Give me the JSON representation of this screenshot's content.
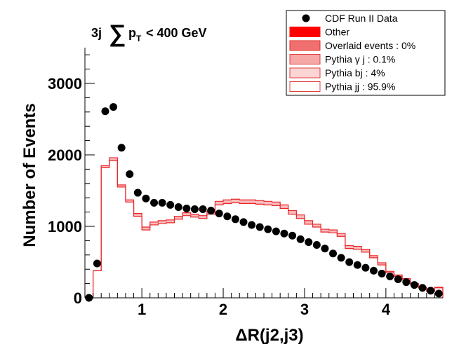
{
  "chart_data": {
    "type": "line",
    "xlabel": "ΔR(j2,j3)",
    "ylabel": "Number of Events",
    "xlim": [
      0.3,
      4.7
    ],
    "ylim": [
      0,
      3500
    ],
    "x_ticks": [
      1,
      2,
      3,
      4
    ],
    "y_ticks": [
      0,
      1000,
      2000,
      3000
    ],
    "header": {
      "prefix": "3j",
      "sum_symbol": "∑",
      "var": "p",
      "sub": "T",
      "cut": "< 400 GeV"
    },
    "bin_edges": [
      0.3,
      0.4,
      0.5,
      0.6,
      0.7,
      0.8,
      0.9,
      1.0,
      1.1,
      1.2,
      1.3,
      1.4,
      1.5,
      1.6,
      1.7,
      1.8,
      1.9,
      2.0,
      2.1,
      2.2,
      2.3,
      2.4,
      2.5,
      2.6,
      2.7,
      2.8,
      2.9,
      3.0,
      3.1,
      3.2,
      3.3,
      3.4,
      3.5,
      3.6,
      3.7,
      3.8,
      3.9,
      4.0,
      4.1,
      4.2,
      4.3,
      4.4,
      4.5,
      4.6,
      4.7
    ],
    "series": [
      {
        "name": "CDF Run II Data",
        "style": "markers",
        "x": [
          0.35,
          0.45,
          0.55,
          0.65,
          0.75,
          0.85,
          0.95,
          1.05,
          1.15,
          1.25,
          1.35,
          1.45,
          1.55,
          1.65,
          1.75,
          1.85,
          1.95,
          2.05,
          2.15,
          2.25,
          2.35,
          2.45,
          2.55,
          2.65,
          2.75,
          2.85,
          2.95,
          3.05,
          3.15,
          3.25,
          3.35,
          3.45,
          3.55,
          3.65,
          3.75,
          3.85,
          3.95,
          4.05,
          4.15,
          4.25,
          4.35,
          4.45,
          4.55,
          4.65
        ],
        "values": [
          0,
          480,
          2610,
          2670,
          2100,
          1730,
          1470,
          1390,
          1330,
          1330,
          1300,
          1270,
          1250,
          1240,
          1240,
          1220,
          1180,
          1140,
          1100,
          1060,
          1020,
          990,
          960,
          930,
          900,
          870,
          820,
          780,
          740,
          690,
          620,
          560,
          500,
          460,
          420,
          380,
          340,
          300,
          260,
          220,
          180,
          140,
          100,
          60
        ]
      },
      {
        "name": "Pythia jj : 95.9%",
        "style": "hist",
        "values": [
          0,
          380,
          1820,
          1920,
          1550,
          1340,
          1140,
          950,
          1020,
          1040,
          1050,
          1100,
          1150,
          1130,
          1110,
          1170,
          1300,
          1320,
          1330,
          1320,
          1320,
          1310,
          1300,
          1290,
          1250,
          1170,
          1110,
          1030,
          990,
          920,
          910,
          860,
          690,
          680,
          640,
          560,
          460,
          350,
          300,
          250,
          190,
          140,
          90,
          140
        ]
      },
      {
        "name": "Pythia bj : 4%",
        "style": "hist",
        "values": [
          0,
          380,
          1850,
          1960,
          1580,
          1370,
          1180,
          990,
          1060,
          1080,
          1090,
          1140,
          1190,
          1170,
          1150,
          1210,
          1350,
          1370,
          1380,
          1370,
          1370,
          1360,
          1350,
          1340,
          1300,
          1220,
          1160,
          1080,
          1030,
          960,
          950,
          900,
          730,
          720,
          680,
          590,
          490,
          370,
          320,
          270,
          200,
          150,
          100,
          150
        ]
      },
      {
        "name": "Pythia γ j : 0.1%",
        "style": "hist",
        "values": []
      },
      {
        "name": "Overlaid events : 0%",
        "style": "hist",
        "values": []
      },
      {
        "name": "Other",
        "style": "hist",
        "values": []
      }
    ]
  },
  "legend": {
    "title": "",
    "entries": [
      {
        "label": "CDF Run II Data",
        "marker": "dot",
        "color": "#000000"
      },
      {
        "label": "Other",
        "marker": "box",
        "fill": "#ff0000",
        "stroke": "#ff0000"
      },
      {
        "label": "Overlaid events : 0%",
        "marker": "box",
        "fill": "#f07070",
        "stroke": "#e03030"
      },
      {
        "label": "Pythia γ j : 0.1%",
        "marker": "box",
        "fill": "#f6a8a8",
        "stroke": "#e04040"
      },
      {
        "label": "Pythia bj : 4%",
        "marker": "box",
        "fill": "#fbd4d4",
        "stroke": "#e04040"
      },
      {
        "label": "Pythia jj : 95.9%",
        "marker": "box",
        "fill": "#ffffff",
        "stroke": "#e04040"
      }
    ]
  },
  "colors": {
    "hist_line": "#e8262a",
    "band_fill": "#f9bcbc",
    "data": "#000000"
  }
}
